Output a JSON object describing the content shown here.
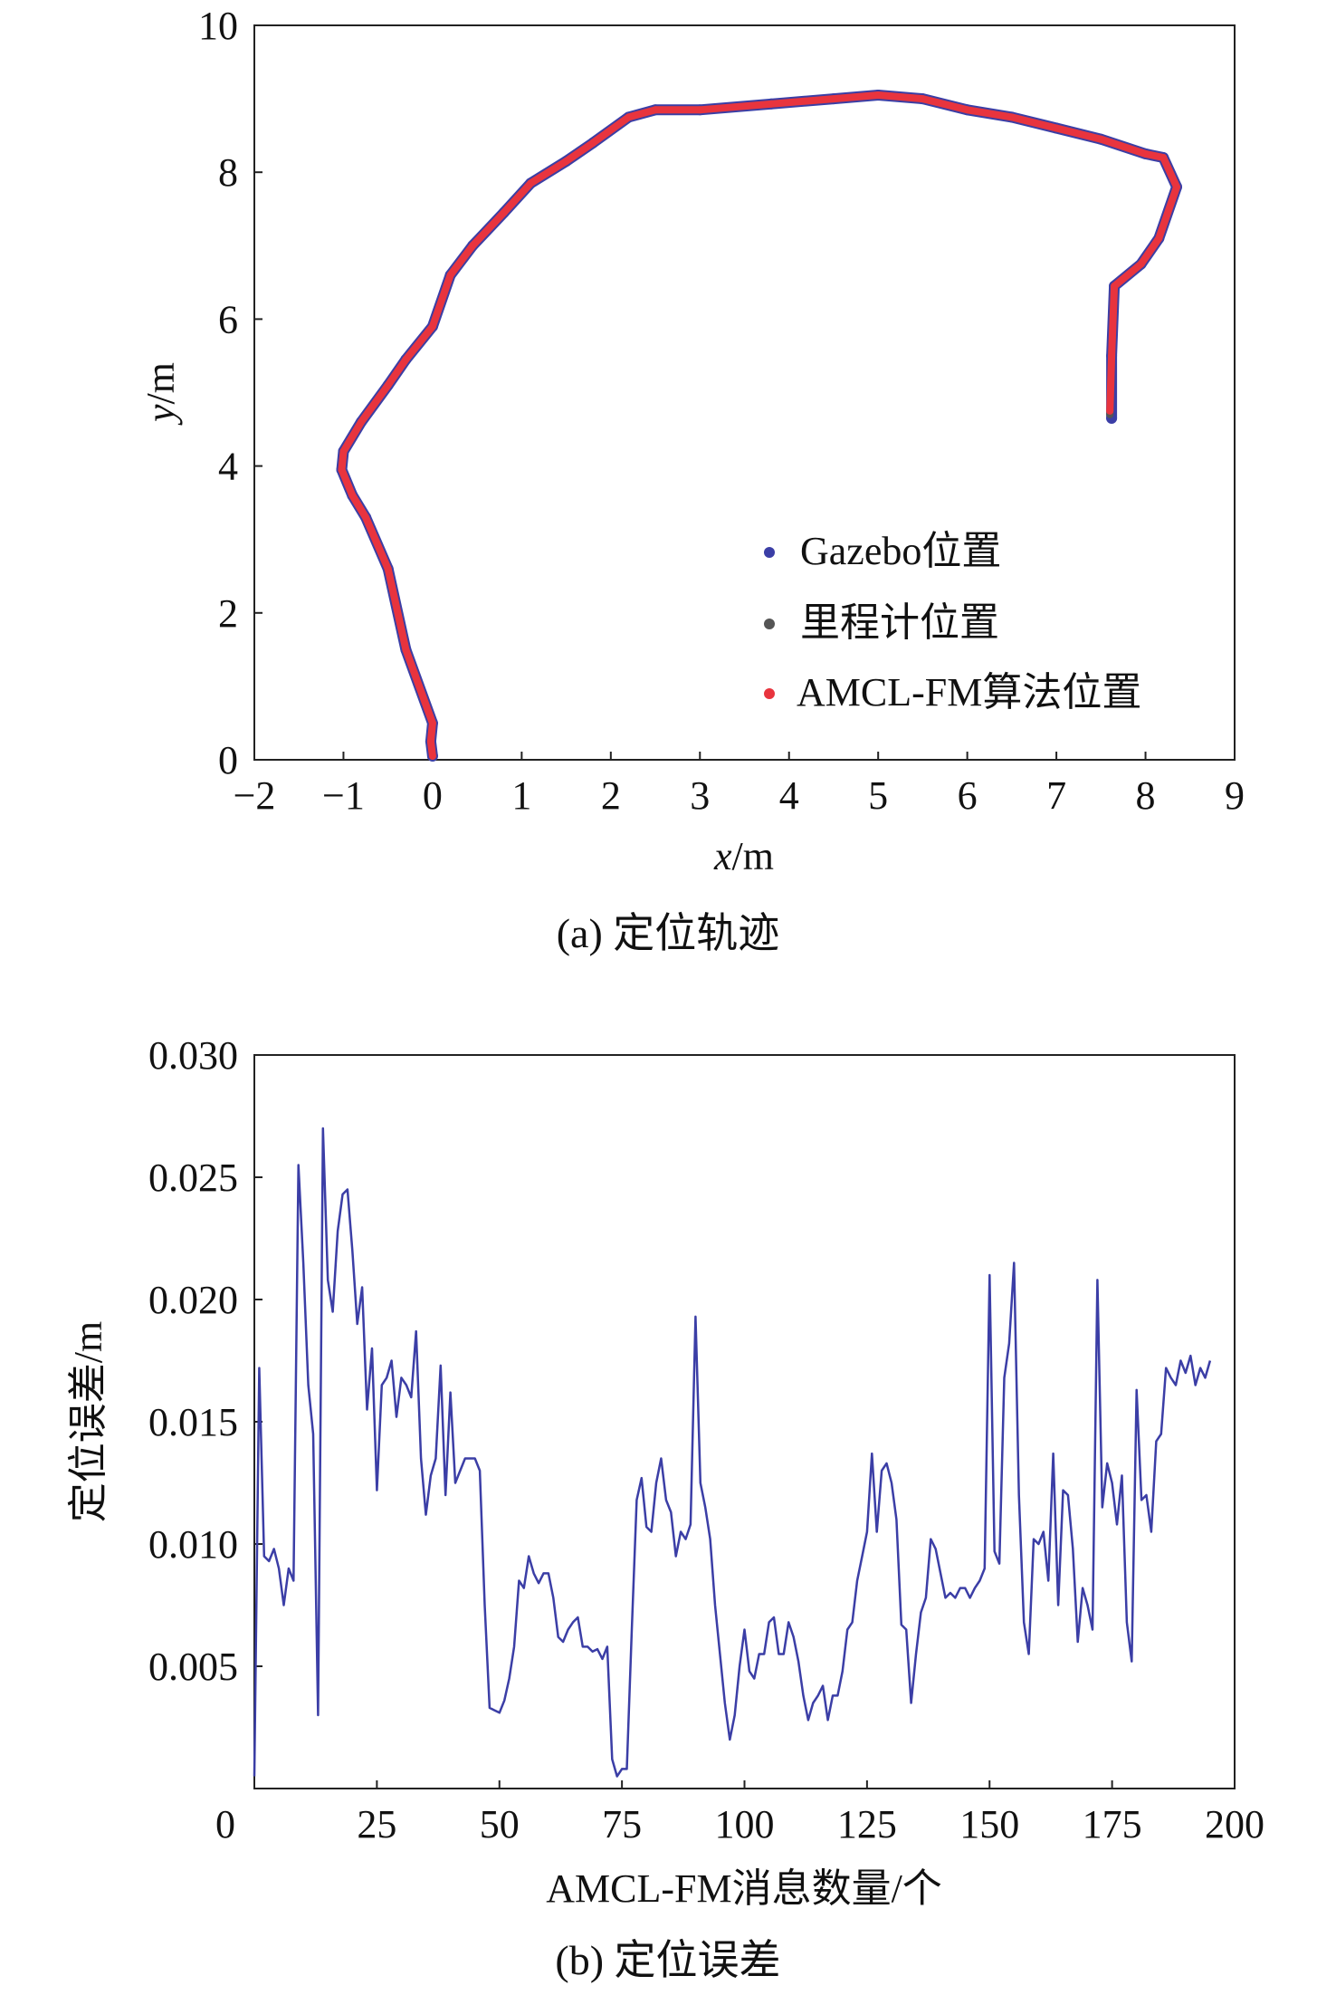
{
  "chart_data": [
    {
      "type": "scatter",
      "title": "",
      "caption": "(a) 定位轨迹",
      "xlabel_italic": "x",
      "xlabel_unit": "/m",
      "ylabel_italic": "y",
      "ylabel_unit": "/m",
      "xlim": [
        -2,
        9
      ],
      "ylim": [
        0,
        10
      ],
      "xticks": [
        "−2",
        "−1",
        "0",
        "1",
        "2",
        "3",
        "4",
        "5",
        "6",
        "7",
        "8",
        "9"
      ],
      "yticks": [
        "0",
        "2",
        "4",
        "6",
        "8",
        "10"
      ],
      "grid": false,
      "legend_position": "lower-right",
      "series": [
        {
          "name": "Gazebo位置",
          "color": "#3b3ea6",
          "x": [
            0.0,
            -0.02,
            0.0,
            -0.3,
            -0.5,
            -0.75,
            -0.9,
            -1.02,
            -1.0,
            -0.8,
            -0.5,
            -0.3,
            0.0,
            0.2,
            0.45,
            0.8,
            1.1,
            1.5,
            1.8,
            2.2,
            2.5,
            3.0,
            3.8,
            4.5,
            5.0,
            5.5,
            6.0,
            6.5,
            7.0,
            7.5,
            8.0,
            8.2,
            8.35,
            8.15,
            7.95,
            7.65,
            7.62,
            7.62
          ],
          "y": [
            0.05,
            0.25,
            0.5,
            1.5,
            2.6,
            3.3,
            3.6,
            3.95,
            4.2,
            4.6,
            5.1,
            5.45,
            5.9,
            6.6,
            7.0,
            7.45,
            7.85,
            8.15,
            8.4,
            8.75,
            8.85,
            8.85,
            8.93,
            9.0,
            9.05,
            9.0,
            8.85,
            8.75,
            8.6,
            8.45,
            8.25,
            8.2,
            7.8,
            7.1,
            6.75,
            6.45,
            5.5,
            4.65
          ]
        },
        {
          "name": "里程计位置",
          "color": "#555555",
          "x": [
            0.0,
            -0.02,
            0.0,
            -0.3,
            -0.5,
            -0.75,
            -0.9,
            -1.02,
            -1.0,
            -0.8,
            -0.5,
            -0.3,
            0.0,
            0.2,
            0.45,
            0.8,
            1.1,
            1.5,
            1.8,
            2.2,
            2.5,
            3.0,
            3.8,
            4.5,
            5.0,
            5.5,
            6.0,
            6.5,
            7.0,
            7.5,
            8.0,
            8.2,
            8.35,
            8.15,
            7.95,
            7.65,
            7.62,
            7.6
          ],
          "y": [
            0.05,
            0.25,
            0.5,
            1.5,
            2.6,
            3.3,
            3.6,
            3.95,
            4.2,
            4.6,
            5.1,
            5.45,
            5.9,
            6.6,
            7.0,
            7.45,
            7.85,
            8.15,
            8.4,
            8.75,
            8.85,
            8.85,
            8.93,
            9.0,
            9.05,
            9.0,
            8.85,
            8.75,
            8.6,
            8.45,
            8.25,
            8.2,
            7.8,
            7.1,
            6.75,
            6.45,
            5.5,
            4.7
          ]
        },
        {
          "name": "AMCL-FM算法位置",
          "color": "#e8343e",
          "x": [
            0.0,
            -0.02,
            0.0,
            -0.3,
            -0.5,
            -0.75,
            -0.9,
            -1.02,
            -1.0,
            -0.8,
            -0.5,
            -0.3,
            0.0,
            0.2,
            0.45,
            0.8,
            1.1,
            1.5,
            1.8,
            2.2,
            2.5,
            3.0,
            3.8,
            4.5,
            5.0,
            5.5,
            6.0,
            6.5,
            7.0,
            7.5,
            8.0,
            8.2,
            8.35,
            8.15,
            7.95,
            7.65,
            7.62,
            7.6
          ],
          "y": [
            0.05,
            0.25,
            0.5,
            1.5,
            2.6,
            3.3,
            3.6,
            3.95,
            4.2,
            4.6,
            5.1,
            5.45,
            5.9,
            6.6,
            7.0,
            7.45,
            7.85,
            8.15,
            8.4,
            8.75,
            8.85,
            8.85,
            8.93,
            9.0,
            9.05,
            9.0,
            8.85,
            8.75,
            8.6,
            8.45,
            8.25,
            8.2,
            7.8,
            7.1,
            6.75,
            6.45,
            5.5,
            4.75
          ]
        }
      ]
    },
    {
      "type": "line",
      "title": "",
      "caption": "(b) 定位误差",
      "xlabel": "AMCL-FM消息数量/个",
      "ylabel": "定位误差/m",
      "xlim": [
        0,
        200
      ],
      "ylim": [
        0,
        0.03
      ],
      "xticks": [
        "0",
        "25",
        "50",
        "75",
        "100",
        "125",
        "150",
        "175",
        "200"
      ],
      "yticks": [
        "0.005",
        "0.010",
        "0.015",
        "0.020",
        "0.025",
        "0.030"
      ],
      "grid": false,
      "series": [
        {
          "color": "#3b3ea6",
          "x": [
            0,
            1,
            2,
            3,
            4,
            5,
            6,
            7,
            8,
            9,
            10,
            11,
            12,
            13,
            14,
            15,
            16,
            17,
            18,
            19,
            20,
            21,
            22,
            23,
            24,
            25,
            26,
            27,
            28,
            29,
            30,
            31,
            32,
            33,
            34,
            35,
            36,
            37,
            38,
            39,
            40,
            41,
            42,
            43,
            44,
            45,
            46,
            47,
            48,
            49,
            50,
            51,
            52,
            53,
            54,
            55,
            56,
            57,
            58,
            59,
            60,
            61,
            62,
            63,
            64,
            65,
            66,
            67,
            68,
            69,
            70,
            71,
            72,
            73,
            74,
            75,
            76,
            77,
            78,
            79,
            80,
            81,
            82,
            83,
            84,
            85,
            86,
            87,
            88,
            89,
            90,
            91,
            92,
            93,
            94,
            95,
            96,
            97,
            98,
            99,
            100,
            101,
            102,
            103,
            104,
            105,
            106,
            107,
            108,
            109,
            110,
            111,
            112,
            113,
            114,
            115,
            116,
            117,
            118,
            119,
            120,
            121,
            122,
            123,
            124,
            125,
            126,
            127,
            128,
            129,
            130,
            131,
            132,
            133,
            134,
            135,
            136,
            137,
            138,
            139,
            140,
            141,
            142,
            143,
            144,
            145,
            146,
            147,
            148,
            149,
            150,
            151,
            152,
            153,
            154,
            155,
            156,
            157,
            158,
            159,
            160,
            161,
            162,
            163,
            164,
            165,
            166,
            167,
            168,
            169,
            170,
            171,
            172,
            173,
            174,
            175,
            176,
            177,
            178,
            179,
            180,
            181,
            182,
            183,
            184,
            185,
            186,
            187,
            188,
            189,
            190,
            191,
            192,
            193,
            194,
            195
          ],
          "values": [
            0.0005,
            0.0172,
            0.0095,
            0.0093,
            0.0098,
            0.009,
            0.0075,
            0.009,
            0.0085,
            0.0255,
            0.0215,
            0.0165,
            0.0145,
            0.003,
            0.027,
            0.0208,
            0.0195,
            0.0228,
            0.0243,
            0.0245,
            0.022,
            0.019,
            0.0205,
            0.0155,
            0.018,
            0.0122,
            0.0165,
            0.0168,
            0.0175,
            0.0152,
            0.0168,
            0.0165,
            0.016,
            0.0187,
            0.0135,
            0.0112,
            0.0128,
            0.0135,
            0.0173,
            0.012,
            0.0162,
            0.0125,
            0.013,
            0.0135,
            0.0135,
            0.0135,
            0.013,
            0.0075,
            0.0033,
            0.0032,
            0.0031,
            0.0036,
            0.0045,
            0.0058,
            0.0085,
            0.0082,
            0.0095,
            0.0088,
            0.0084,
            0.0088,
            0.0088,
            0.0078,
            0.0062,
            0.006,
            0.0065,
            0.0068,
            0.007,
            0.0058,
            0.0058,
            0.0056,
            0.0057,
            0.0053,
            0.0058,
            0.0012,
            0.0005,
            0.0008,
            0.0008,
            0.0065,
            0.0118,
            0.0127,
            0.0107,
            0.0105,
            0.0125,
            0.0135,
            0.0118,
            0.0113,
            0.0095,
            0.0105,
            0.0102,
            0.0108,
            0.0193,
            0.0125,
            0.0115,
            0.0102,
            0.0075,
            0.0055,
            0.0035,
            0.002,
            0.003,
            0.005,
            0.0065,
            0.0048,
            0.0045,
            0.0055,
            0.0055,
            0.0068,
            0.007,
            0.0055,
            0.0055,
            0.0068,
            0.0062,
            0.0052,
            0.0038,
            0.0028,
            0.0035,
            0.0038,
            0.0042,
            0.0028,
            0.0038,
            0.0038,
            0.0048,
            0.0065,
            0.0068,
            0.0085,
            0.0095,
            0.0105,
            0.0137,
            0.0105,
            0.013,
            0.0133,
            0.0125,
            0.011,
            0.0067,
            0.0065,
            0.0035,
            0.0055,
            0.0072,
            0.0078,
            0.0102,
            0.0098,
            0.0088,
            0.0078,
            0.008,
            0.0078,
            0.0082,
            0.0082,
            0.0078,
            0.0082,
            0.0085,
            0.009,
            0.021,
            0.0097,
            0.0092,
            0.0168,
            0.0182,
            0.0215,
            0.012,
            0.0068,
            0.0055,
            0.0102,
            0.01,
            0.0105,
            0.0085,
            0.0137,
            0.0075,
            0.0122,
            0.012,
            0.0098,
            0.006,
            0.0082,
            0.0075,
            0.0065,
            0.0208,
            0.0115,
            0.0133,
            0.0125,
            0.0108,
            0.0128,
            0.0068,
            0.0052,
            0.0163,
            0.0118,
            0.012,
            0.0105,
            0.0142,
            0.0145,
            0.0172,
            0.0168,
            0.0165,
            0.0175,
            0.017,
            0.0177,
            0.0165,
            0.0172,
            0.0168,
            0.0175
          ]
        }
      ]
    }
  ]
}
